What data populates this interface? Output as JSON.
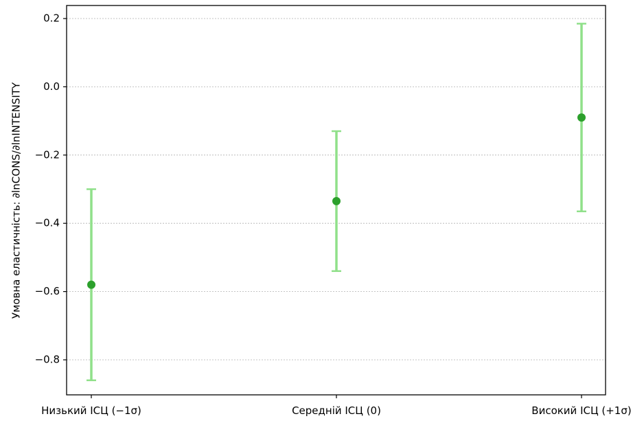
{
  "chart_data": {
    "type": "errorbar",
    "categories": [
      "Низький ІСЦ (−1σ)",
      "Середній ІСЦ (0)",
      "Високий ІСЦ (+1σ)"
    ],
    "values": [
      -0.58,
      -0.335,
      -0.09
    ],
    "error_low": [
      -0.86,
      -0.54,
      -0.365
    ],
    "error_high": [
      -0.3,
      -0.13,
      0.185
    ],
    "ylabel": "Умовна еластичність: ∂lnCONS/∂lnINTENSITY",
    "xlabel": "",
    "ylim": [
      -0.9,
      0.24
    ],
    "yticks": [
      0.2,
      0.0,
      -0.2,
      -0.4,
      -0.6,
      -0.8
    ],
    "ytick_labels": [
      "0.2",
      "0.0",
      "−0.2",
      "−0.4",
      "−0.6",
      "−0.8"
    ],
    "grid": "horizontal dotted",
    "colors": {
      "point": "#2ca02c",
      "errorbar": "#90e08a"
    }
  }
}
